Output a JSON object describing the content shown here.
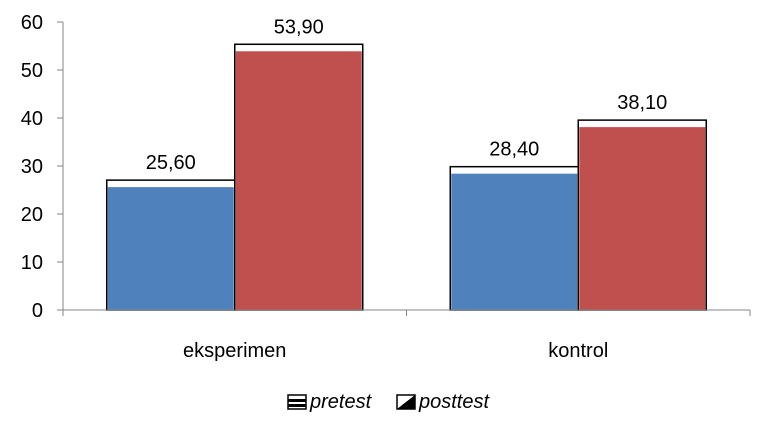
{
  "chart_data": {
    "type": "bar",
    "categories": [
      "eksperimen",
      "kontrol"
    ],
    "series": [
      {
        "name": "pretest",
        "values": [
          25.6,
          28.4
        ],
        "labels": [
          "25,60",
          "28,40"
        ],
        "color": "#4f81bd"
      },
      {
        "name": "posttest",
        "values": [
          53.9,
          38.1
        ],
        "labels": [
          "53,90",
          "38,10"
        ],
        "color": "#c0504d"
      }
    ],
    "ylim": [
      0,
      60
    ],
    "yticks": [
      0,
      10,
      20,
      30,
      40,
      50,
      60
    ],
    "ytick_labels": [
      "0",
      "10",
      "20",
      "30",
      "40",
      "50",
      "60"
    ],
    "grid": false,
    "legend": "bottom"
  }
}
